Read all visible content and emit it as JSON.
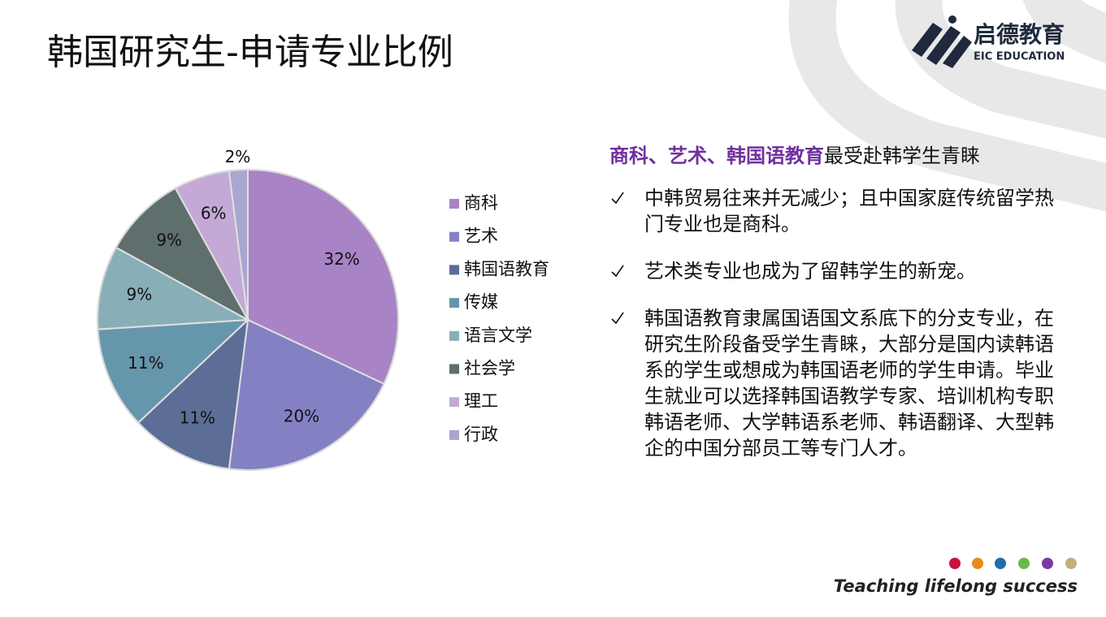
{
  "header": {
    "title": "韩国研究生-申请专业比例",
    "logo_name": "启德教育",
    "logo_sub": "EIC EDUCATION"
  },
  "chart_data": {
    "type": "pie",
    "categories": [
      "商科",
      "艺术",
      "韩国语教育",
      "传媒",
      "语言文学",
      "社会学",
      "理工",
      "行政"
    ],
    "values": [
      32,
      20,
      11,
      11,
      9,
      9,
      6,
      2
    ],
    "value_labels": [
      "32%",
      "20%",
      "11%",
      "11%",
      "9%",
      "9%",
      "6%",
      "2%"
    ],
    "colors": [
      "#a883c6",
      "#8480c4",
      "#5c6e96",
      "#6696ab",
      "#88aeb8",
      "#5f6f6d",
      "#c4a9d6",
      "#a9a6d0"
    ],
    "legend": "right"
  },
  "notes": {
    "heading_highlight": "商科、艺术、韩国语教育",
    "heading_rest": "最受赴韩学生青睐",
    "bullets": [
      "中韩贸易往来并无减少；且中国家庭传统留学热门专业也是商科。",
      "艺术类专业也成为了留韩学生的新宠。",
      "韩国语教育隶属国语国文系底下的分支专业，在研究生阶段备受学生青睐，大部分是国内读韩语系的学生或想成为韩国语老师的学生申请。毕业生就业可以选择韩国语教学专家、培训机构专职韩语老师、大学韩语系老师、韩语翻译、大型韩企的中国分部员工等专门人才。"
    ]
  },
  "footer": {
    "slogan": "Teaching lifelong success"
  }
}
